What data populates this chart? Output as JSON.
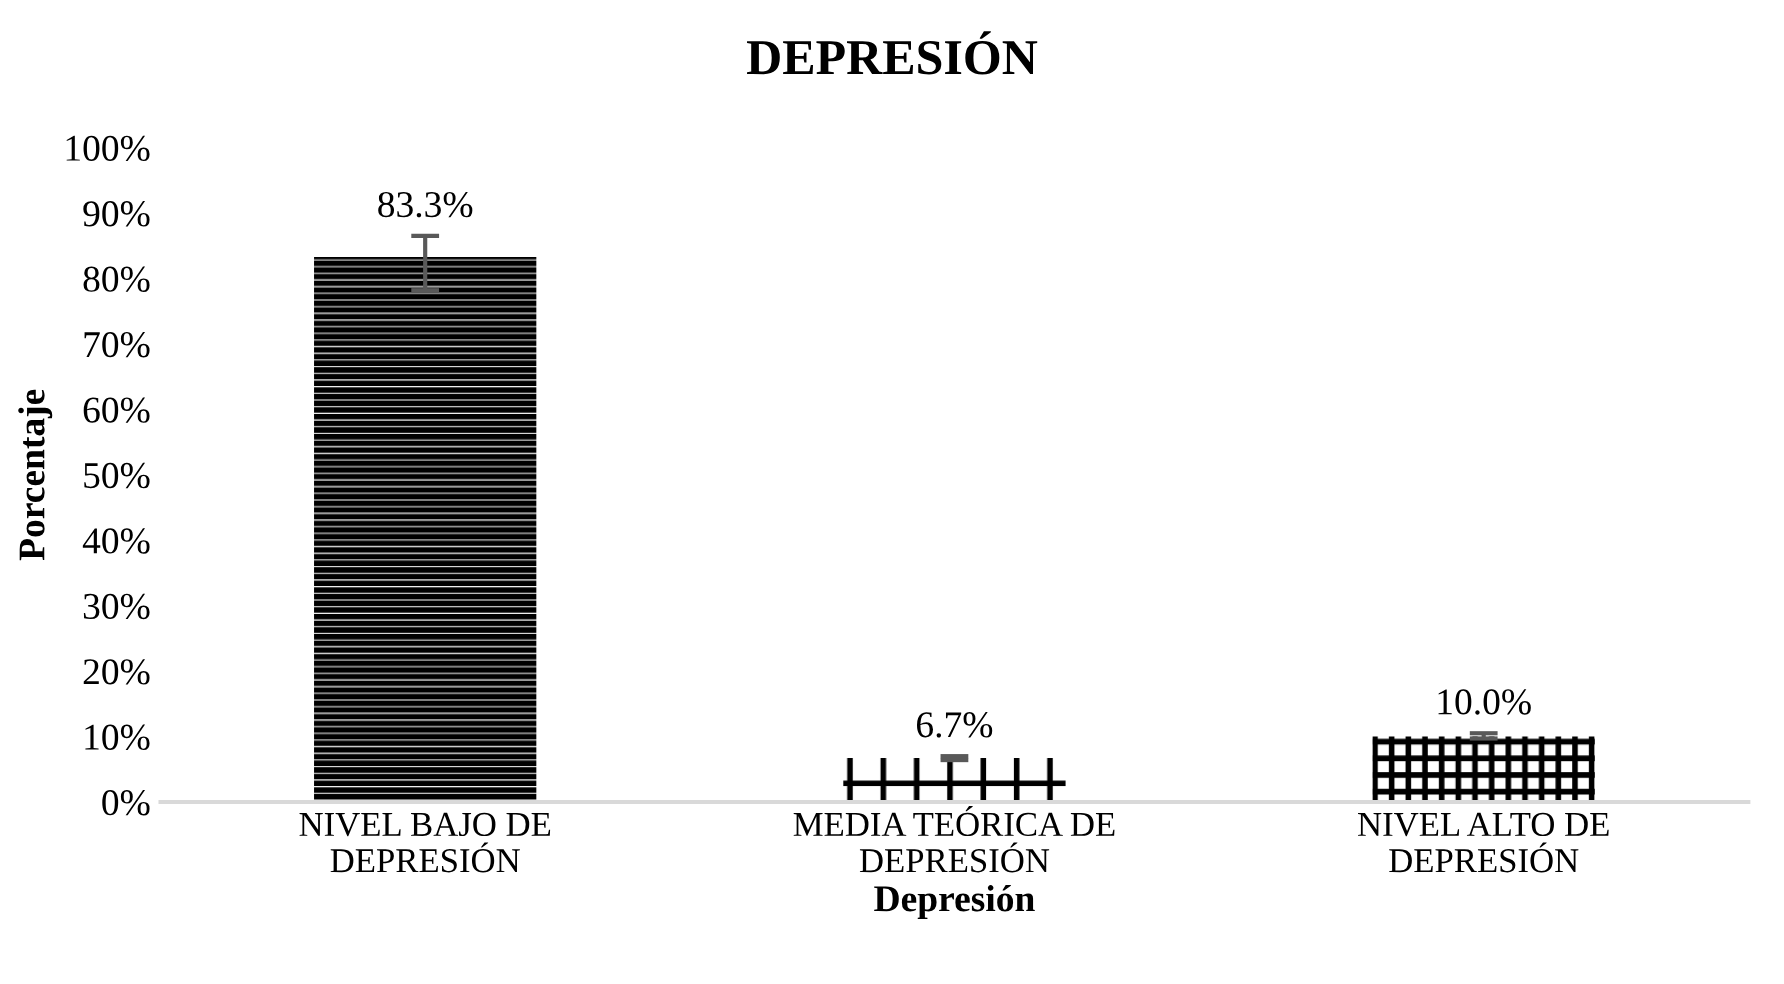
{
  "chart_data": {
    "type": "bar",
    "title": "DEPRESIÓN",
    "xlabel": "Depresión",
    "ylabel": "Porcentaje",
    "categories": [
      "NIVEL BAJO DE\nDEPRESIÓN",
      "MEDIA TEÓRICA DE\nDEPRESIÓN",
      "NIVEL ALTO DE\nDEPRESIÓN"
    ],
    "values": [
      83.3,
      6.7,
      10.0
    ],
    "value_labels": [
      "83.3%",
      "6.7%",
      "10.0%"
    ],
    "errors": [
      [
        78.2,
        86.5
      ],
      [
        6.4,
        7.0
      ],
      [
        9.7,
        10.5
      ]
    ],
    "color": "#000000",
    "ylim": [
      0,
      100
    ],
    "yticks": [
      {
        "value": 0,
        "label": "0%"
      },
      {
        "value": 10,
        "label": "10%"
      },
      {
        "value": 20,
        "label": "20%"
      },
      {
        "value": 30,
        "label": "30%"
      },
      {
        "value": 40,
        "label": "40%"
      },
      {
        "value": 50,
        "label": "50%"
      },
      {
        "value": 60,
        "label": "60%"
      },
      {
        "value": 70,
        "label": "70%"
      },
      {
        "value": 80,
        "label": "80%"
      },
      {
        "value": 90,
        "label": "90%"
      },
      {
        "value": 100,
        "label": "100%"
      }
    ],
    "grid": false
  }
}
